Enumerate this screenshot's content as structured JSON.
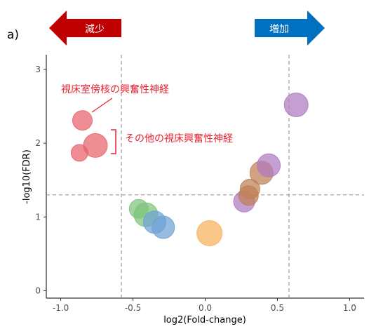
{
  "chart_data": {
    "type": "scatter",
    "panel_label": "a)",
    "xlabel": "log2(Fold-change)",
    "ylabel": "-log10(FDR)",
    "xlim": [
      -1.1,
      1.1
    ],
    "ylim": [
      -0.1,
      3.2
    ],
    "xticks": [
      -1.0,
      -0.5,
      0.0,
      0.5,
      1.0
    ],
    "xtick_labels": [
      "-1.0",
      "-0.5",
      "0.0",
      "0.5",
      "1.0"
    ],
    "yticks": [
      0,
      1,
      2,
      3
    ],
    "ytick_labels": [
      "0",
      "1",
      "2",
      "3"
    ],
    "grid": false,
    "reference_lines": {
      "vertical": [
        -0.58,
        0.58
      ],
      "horizontal": [
        1.3
      ]
    },
    "arrows": {
      "decrease": "減少",
      "increase": "増加"
    },
    "arrow_colors": {
      "decrease": "#c00000",
      "increase": "#0070c0"
    },
    "annotations": {
      "paraventricular": "視床室傍核の興奮性神経",
      "other_thalamic": "その他の視床興奮性神経"
    },
    "points": [
      {
        "x": -0.85,
        "y": 2.31,
        "size": 1.0,
        "color": "#e8636b"
      },
      {
        "x": -0.87,
        "y": 1.87,
        "size": 0.6,
        "color": "#e8636b"
      },
      {
        "x": -0.76,
        "y": 1.97,
        "size": 1.6,
        "color": "#e8636b"
      },
      {
        "x": -0.46,
        "y": 1.11,
        "size": 0.9,
        "color": "#7dc47a"
      },
      {
        "x": -0.41,
        "y": 1.03,
        "size": 1.6,
        "color": "#7dc47a"
      },
      {
        "x": -0.35,
        "y": 0.93,
        "size": 1.4,
        "color": "#6ea2d2"
      },
      {
        "x": -0.29,
        "y": 0.86,
        "size": 1.4,
        "color": "#6ea2d2"
      },
      {
        "x": 0.03,
        "y": 0.78,
        "size": 1.8,
        "color": "#f7b15c"
      },
      {
        "x": 0.27,
        "y": 1.21,
        "size": 1.2,
        "color": "#b07ac0"
      },
      {
        "x": 0.3,
        "y": 1.29,
        "size": 1.0,
        "color": "#bf7f56"
      },
      {
        "x": 0.31,
        "y": 1.38,
        "size": 1.0,
        "color": "#bf7f56"
      },
      {
        "x": 0.39,
        "y": 1.6,
        "size": 1.5,
        "color": "#bf7f56"
      },
      {
        "x": 0.44,
        "y": 1.7,
        "size": 1.5,
        "color": "#b07ac0"
      },
      {
        "x": 0.63,
        "y": 2.52,
        "size": 1.6,
        "color": "#b07ac0"
      }
    ]
  }
}
